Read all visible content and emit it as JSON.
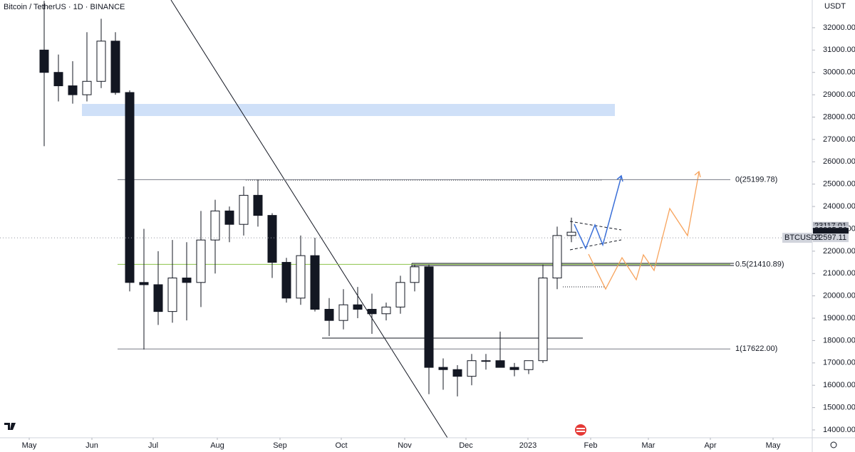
{
  "chart_data": {
    "type": "candlestick",
    "title": "Bitcoin / TetherUS · 1D · BINANCE",
    "currency": "USDT",
    "symbol": "BTCUSDT",
    "xticks": [
      {
        "value": -1.05,
        "label": "May"
      },
      {
        "value": 3.35,
        "label": "Jun"
      },
      {
        "value": 7.65,
        "label": "Jul"
      },
      {
        "value": 12.15,
        "label": "Aug"
      },
      {
        "value": 16.55,
        "label": "Sep"
      },
      {
        "value": 20.85,
        "label": "Oct"
      },
      {
        "value": 25.3,
        "label": "Nov"
      },
      {
        "value": 29.6,
        "label": "Dec"
      },
      {
        "value": 33.95,
        "label": "2023"
      },
      {
        "value": 38.35,
        "label": "Feb"
      },
      {
        "value": 42.4,
        "label": "Mar"
      },
      {
        "value": 46.75,
        "label": "Apr"
      },
      {
        "value": 51.15,
        "label": "May"
      }
    ],
    "xlim": [
      -3.1,
      53.9
    ],
    "ylim": [
      13650,
      33240
    ],
    "yticks": [
      {
        "value": 14000,
        "label": "14000.00"
      },
      {
        "value": 15000,
        "label": "15000.00"
      },
      {
        "value": 16000,
        "label": "16000.00"
      },
      {
        "value": 17000,
        "label": "17000.00"
      },
      {
        "value": 18000,
        "label": "18000.00"
      },
      {
        "value": 19000,
        "label": "19000.00"
      },
      {
        "value": 20000,
        "label": "20000.00"
      },
      {
        "value": 21000,
        "label": "21000.00"
      },
      {
        "value": 22000,
        "label": "22000.00"
      },
      {
        "value": 23000,
        "label": "23000.00"
      },
      {
        "value": 24000,
        "label": "24000.00"
      },
      {
        "value": 25000,
        "label": "25000.00"
      },
      {
        "value": 26000,
        "label": "26000.00"
      },
      {
        "value": 27000,
        "label": "27000.00"
      },
      {
        "value": 28000,
        "label": "28000.00"
      },
      {
        "value": 29000,
        "label": "29000.00"
      },
      {
        "value": 30000,
        "label": "30000.00"
      },
      {
        "value": 31000,
        "label": "31000.00"
      },
      {
        "value": 32000,
        "label": "32000.00"
      }
    ],
    "open": [
      31000,
      30000,
      29400,
      29000,
      29600,
      31400,
      29100,
      20600,
      20500,
      19300,
      20800,
      20600,
      22500,
      23800,
      23200,
      24500,
      23600,
      21500,
      19900,
      21800,
      19400,
      18900,
      19600,
      19400,
      19200,
      19500,
      20600,
      21300,
      16800,
      16700,
      16400,
      17100,
      17100,
      16800,
      16700,
      17100,
      20800,
      22700
    ],
    "high": [
      33200,
      30800,
      30500,
      31800,
      32400,
      31800,
      29200,
      23000,
      22000,
      22500,
      22400,
      23800,
      24300,
      24000,
      24900,
      25200,
      23700,
      21700,
      22700,
      22600,
      19900,
      20300,
      20400,
      20100,
      19700,
      20900,
      21400,
      21400,
      17200,
      16900,
      17400,
      17400,
      18400,
      17000,
      17100,
      21400,
      23100,
      23500
    ],
    "low": [
      26700,
      28700,
      28600,
      28700,
      29300,
      29000,
      20200,
      17600,
      18700,
      18800,
      18900,
      19500,
      21000,
      22400,
      22700,
      23100,
      20800,
      19700,
      19600,
      19300,
      18200,
      18500,
      19000,
      18300,
      18900,
      19200,
      20200,
      15600,
      15800,
      15500,
      16000,
      16700,
      16800,
      16400,
      16500,
      17000,
      20300,
      22400
    ],
    "close": [
      30000,
      29400,
      29000,
      29600,
      31400,
      29100,
      20600,
      20500,
      19300,
      20800,
      20600,
      22500,
      23800,
      23200,
      24500,
      23600,
      21500,
      19900,
      21800,
      19400,
      18900,
      19600,
      19400,
      19200,
      19500,
      20600,
      21300,
      16800,
      16700,
      16400,
      17100,
      17100,
      16800,
      16700,
      17100,
      20800,
      22700,
      22850
    ],
    "fib_levels": [
      {
        "value": 25199.78,
        "label": "0(25199.78)",
        "color": "#787b86"
      },
      {
        "value": 21410.89,
        "label": "0.5(21410.89)",
        "color": "#8bc34a"
      },
      {
        "value": 17622.0,
        "label": "1(17622.00)",
        "color": "#787b86"
      }
    ],
    "price_tags": [
      {
        "value": 23117.01,
        "label": "23117.01",
        "color": "#b2b5be"
      },
      {
        "value": 22935.56,
        "label": "22935.56",
        "color": "#d1d4dc"
      },
      {
        "value": 22850.43,
        "label": "22850.43",
        "color": "#131722"
      },
      {
        "value": 22597.11,
        "label": "22597.11",
        "color": "#d1d4dc"
      }
    ],
    "grid": false
  }
}
